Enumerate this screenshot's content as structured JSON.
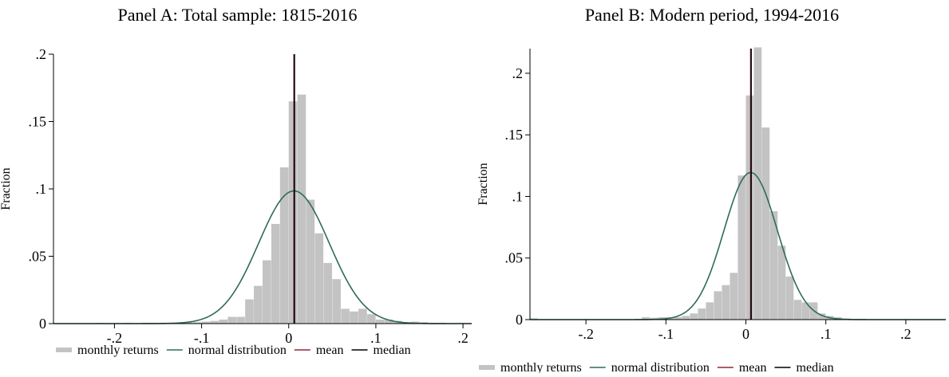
{
  "chart_data": [
    {
      "type": "histogram",
      "title": "Panel A: Total sample: 1815-2016",
      "ylabel": "Fraction",
      "xlabel": "",
      "xlim": [
        -0.27,
        0.21
      ],
      "ylim": [
        0,
        0.2
      ],
      "xticks": [
        -0.2,
        -0.1,
        0,
        0.1,
        0.2
      ],
      "xtick_labels": [
        "-.2",
        "-.1",
        "0",
        ".1",
        ".2"
      ],
      "yticks": [
        0,
        0.05,
        0.1,
        0.15,
        0.2
      ],
      "ytick_labels": [
        "0",
        ".05",
        ".1",
        ".15",
        ".2"
      ],
      "grid": false,
      "bin_width": 0.01,
      "bins": [
        {
          "x0": -0.22,
          "value": 0.0005
        },
        {
          "x0": -0.19,
          "value": 0.0005
        },
        {
          "x0": -0.15,
          "value": 0.0005
        },
        {
          "x0": -0.13,
          "value": 0.0005
        },
        {
          "x0": -0.12,
          "value": 0.001
        },
        {
          "x0": -0.11,
          "value": 0.001
        },
        {
          "x0": -0.1,
          "value": 0.0015
        },
        {
          "x0": -0.09,
          "value": 0.002
        },
        {
          "x0": -0.08,
          "value": 0.003
        },
        {
          "x0": -0.07,
          "value": 0.005
        },
        {
          "x0": -0.06,
          "value": 0.005
        },
        {
          "x0": -0.05,
          "value": 0.018
        },
        {
          "x0": -0.04,
          "value": 0.028
        },
        {
          "x0": -0.03,
          "value": 0.047
        },
        {
          "x0": -0.02,
          "value": 0.074
        },
        {
          "x0": -0.01,
          "value": 0.116
        },
        {
          "x0": 0.0,
          "value": 0.165
        },
        {
          "x0": 0.01,
          "value": 0.17
        },
        {
          "x0": 0.02,
          "value": 0.092
        },
        {
          "x0": 0.03,
          "value": 0.067
        },
        {
          "x0": 0.04,
          "value": 0.045
        },
        {
          "x0": 0.05,
          "value": 0.033
        },
        {
          "x0": 0.06,
          "value": 0.011
        },
        {
          "x0": 0.07,
          "value": 0.009
        },
        {
          "x0": 0.08,
          "value": 0.011
        },
        {
          "x0": 0.09,
          "value": 0.007
        },
        {
          "x0": 0.1,
          "value": 0.003
        },
        {
          "x0": 0.11,
          "value": 0.003
        },
        {
          "x0": 0.12,
          "value": 0.002
        },
        {
          "x0": 0.13,
          "value": 0.001
        },
        {
          "x0": 0.14,
          "value": 0.0015
        },
        {
          "x0": 0.15,
          "value": 0.001
        },
        {
          "x0": 0.16,
          "value": 0.0005
        }
      ],
      "normal": {
        "mean": 0.006,
        "sd": 0.0405
      },
      "mean": 0.006,
      "median": 0.006,
      "series": [
        {
          "name": "monthly returns",
          "color": "#c3c3c3"
        },
        {
          "name": "normal distribution",
          "color": "#2e6b5c"
        },
        {
          "name": "mean",
          "color": "#8e2a36"
        },
        {
          "name": "median",
          "color": "#000000"
        }
      ],
      "legend_position": "bottom"
    },
    {
      "type": "histogram",
      "title": "Panel B: Modern period, 1994-2016",
      "ylabel": "Fraction",
      "xlabel": "",
      "xlim": [
        -0.27,
        0.25
      ],
      "ylim": [
        0,
        0.22
      ],
      "xticks": [
        -0.2,
        -0.1,
        0,
        0.1,
        0.2
      ],
      "xtick_labels": [
        "-.2",
        "-.1",
        "0",
        ".1",
        ".2"
      ],
      "yticks": [
        0,
        0.05,
        0.1,
        0.15,
        0.2
      ],
      "ytick_labels": [
        "0",
        ".05",
        ".1",
        ".15",
        ".2"
      ],
      "grid": false,
      "bin_width": 0.01,
      "bins": [
        {
          "x0": -0.27,
          "value": 0.001
        },
        {
          "x0": -0.13,
          "value": 0.002
        },
        {
          "x0": -0.12,
          "value": 0.0015
        },
        {
          "x0": -0.11,
          "value": 0.002
        },
        {
          "x0": -0.1,
          "value": 0.002
        },
        {
          "x0": -0.09,
          "value": 0.002
        },
        {
          "x0": -0.08,
          "value": 0.003
        },
        {
          "x0": -0.07,
          "value": 0.005
        },
        {
          "x0": -0.06,
          "value": 0.009
        },
        {
          "x0": -0.05,
          "value": 0.014
        },
        {
          "x0": -0.04,
          "value": 0.023
        },
        {
          "x0": -0.03,
          "value": 0.028
        },
        {
          "x0": -0.02,
          "value": 0.038
        },
        {
          "x0": -0.01,
          "value": 0.117
        },
        {
          "x0": 0.0,
          "value": 0.182
        },
        {
          "x0": 0.01,
          "value": 0.221
        },
        {
          "x0": 0.02,
          "value": 0.156
        },
        {
          "x0": 0.03,
          "value": 0.088
        },
        {
          "x0": 0.04,
          "value": 0.06
        },
        {
          "x0": 0.05,
          "value": 0.035
        },
        {
          "x0": 0.06,
          "value": 0.016
        },
        {
          "x0": 0.07,
          "value": 0.014
        },
        {
          "x0": 0.08,
          "value": 0.014
        },
        {
          "x0": 0.09,
          "value": 0.005
        },
        {
          "x0": 0.1,
          "value": 0.003
        },
        {
          "x0": 0.11,
          "value": 0.002
        },
        {
          "x0": 0.12,
          "value": 0.001
        }
      ],
      "normal": {
        "mean": 0.006,
        "sd": 0.0334
      },
      "mean": 0.006,
      "median": 0.006,
      "series": [
        {
          "name": "monthly returns",
          "color": "#c3c3c3"
        },
        {
          "name": "normal distribution",
          "color": "#2e6b5c"
        },
        {
          "name": "mean",
          "color": "#8e2a36"
        },
        {
          "name": "median",
          "color": "#000000"
        }
      ],
      "legend_position": "bottom"
    }
  ]
}
